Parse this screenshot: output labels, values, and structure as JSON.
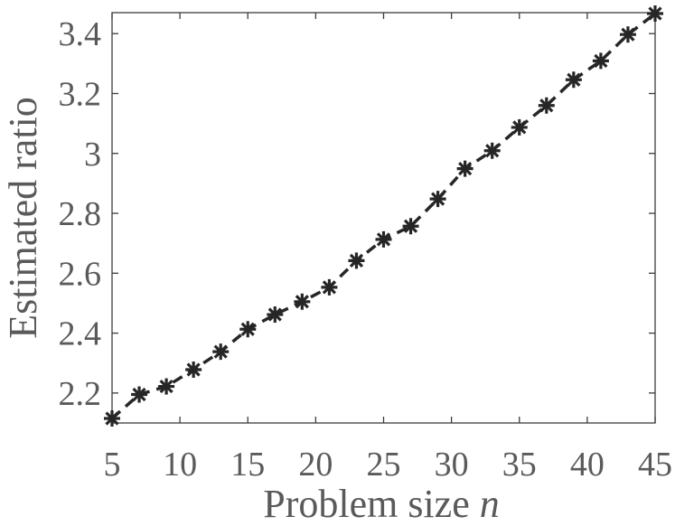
{
  "chart_data": {
    "type": "line",
    "xlabel_prefix": "Problem size ",
    "xlabel_var": "n",
    "ylabel": "Estimated ratio",
    "xlim": [
      5,
      45
    ],
    "ylim": [
      2.1,
      3.47
    ],
    "xticks": [
      5,
      10,
      15,
      20,
      25,
      30,
      35,
      40,
      45
    ],
    "xtick_labels": [
      "5",
      "10",
      "15",
      "20",
      "25",
      "30",
      "35",
      "40",
      "45"
    ],
    "yticks": [
      2.2,
      2.4,
      2.6,
      2.8,
      3.0,
      3.2,
      3.4
    ],
    "ytick_labels": [
      "2.2",
      "2.4",
      "2.6",
      "2.8",
      "3",
      "3.2",
      "3.4"
    ],
    "grid": false,
    "line_style": "dashed",
    "marker": "asterisk",
    "color": "#262626",
    "series": [
      {
        "x": [
          5,
          7,
          9,
          11,
          13,
          15,
          17,
          19,
          21,
          23,
          25,
          27,
          29,
          31,
          33,
          35,
          37,
          39,
          41,
          43,
          45
        ],
        "values": [
          2.115,
          2.195,
          2.222,
          2.278,
          2.338,
          2.413,
          2.462,
          2.505,
          2.553,
          2.642,
          2.713,
          2.757,
          2.848,
          2.949,
          3.009,
          3.087,
          3.16,
          3.246,
          3.309,
          3.397,
          3.467
        ]
      }
    ]
  }
}
